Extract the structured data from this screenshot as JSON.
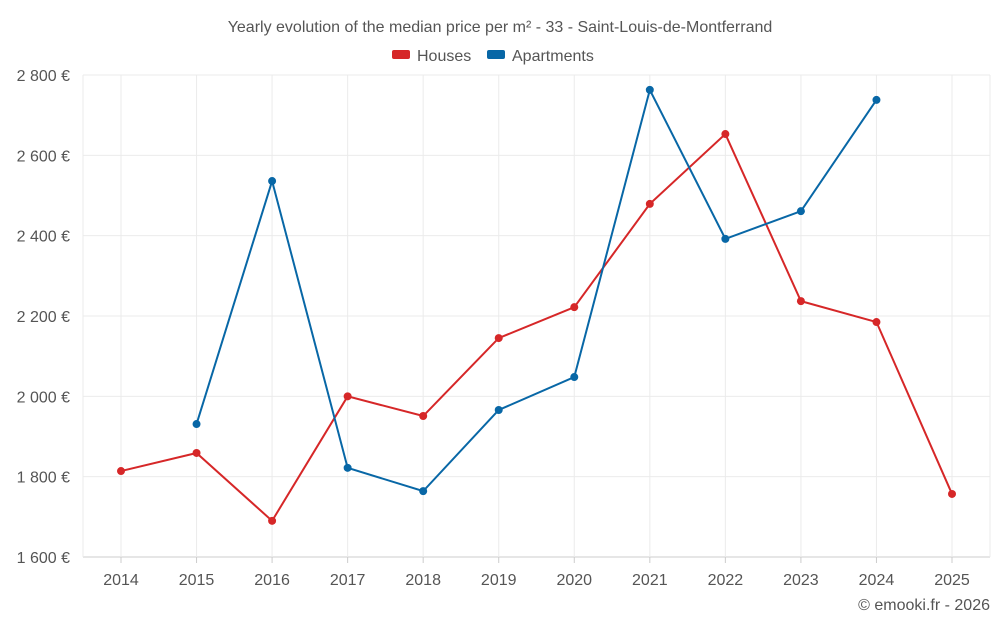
{
  "chart_data": {
    "type": "line",
    "title": "Yearly evolution of the median price per m² - 33 - Saint-Louis-de-Montferrand",
    "xlabel": "",
    "ylabel": "",
    "x": [
      2014,
      2015,
      2016,
      2017,
      2018,
      2019,
      2020,
      2021,
      2022,
      2023,
      2024,
      2025
    ],
    "ylim": [
      1600,
      2800
    ],
    "yticks": [
      1600,
      1800,
      2000,
      2200,
      2400,
      2600,
      2800
    ],
    "ytick_labels": [
      "1 600 €",
      "1 800 €",
      "2 000 €",
      "2 200 €",
      "2 400 €",
      "2 600 €",
      "2 800 €"
    ],
    "grid": true,
    "legend_position": "top-center",
    "series": [
      {
        "name": "Houses",
        "color": "#d62728",
        "values": [
          1814,
          1859,
          1690,
          2000,
          1951,
          2145,
          2222,
          2479,
          2653,
          2237,
          2185,
          1757
        ]
      },
      {
        "name": "Apartments",
        "color": "#0867a6",
        "values": [
          null,
          1931,
          2536,
          1822,
          1764,
          1966,
          2048,
          2763,
          2392,
          2461,
          2738,
          null
        ]
      }
    ],
    "credit": "© emooki.fr - 2026"
  }
}
